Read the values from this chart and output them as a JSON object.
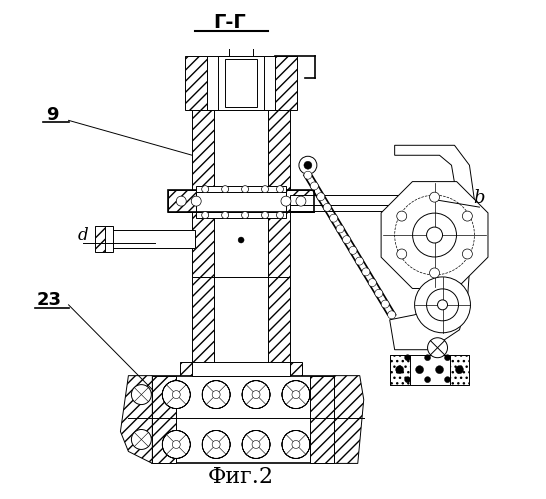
{
  "bg_color": "#ffffff",
  "line_color": "#000000",
  "title": "Г-Г",
  "fig_label": "Фиг.2",
  "label_9": "9",
  "label_b": "b",
  "label_d": "d",
  "label_23": "23",
  "hatch_density": "///",
  "lw_main": 0.7,
  "lw_thick": 1.2
}
